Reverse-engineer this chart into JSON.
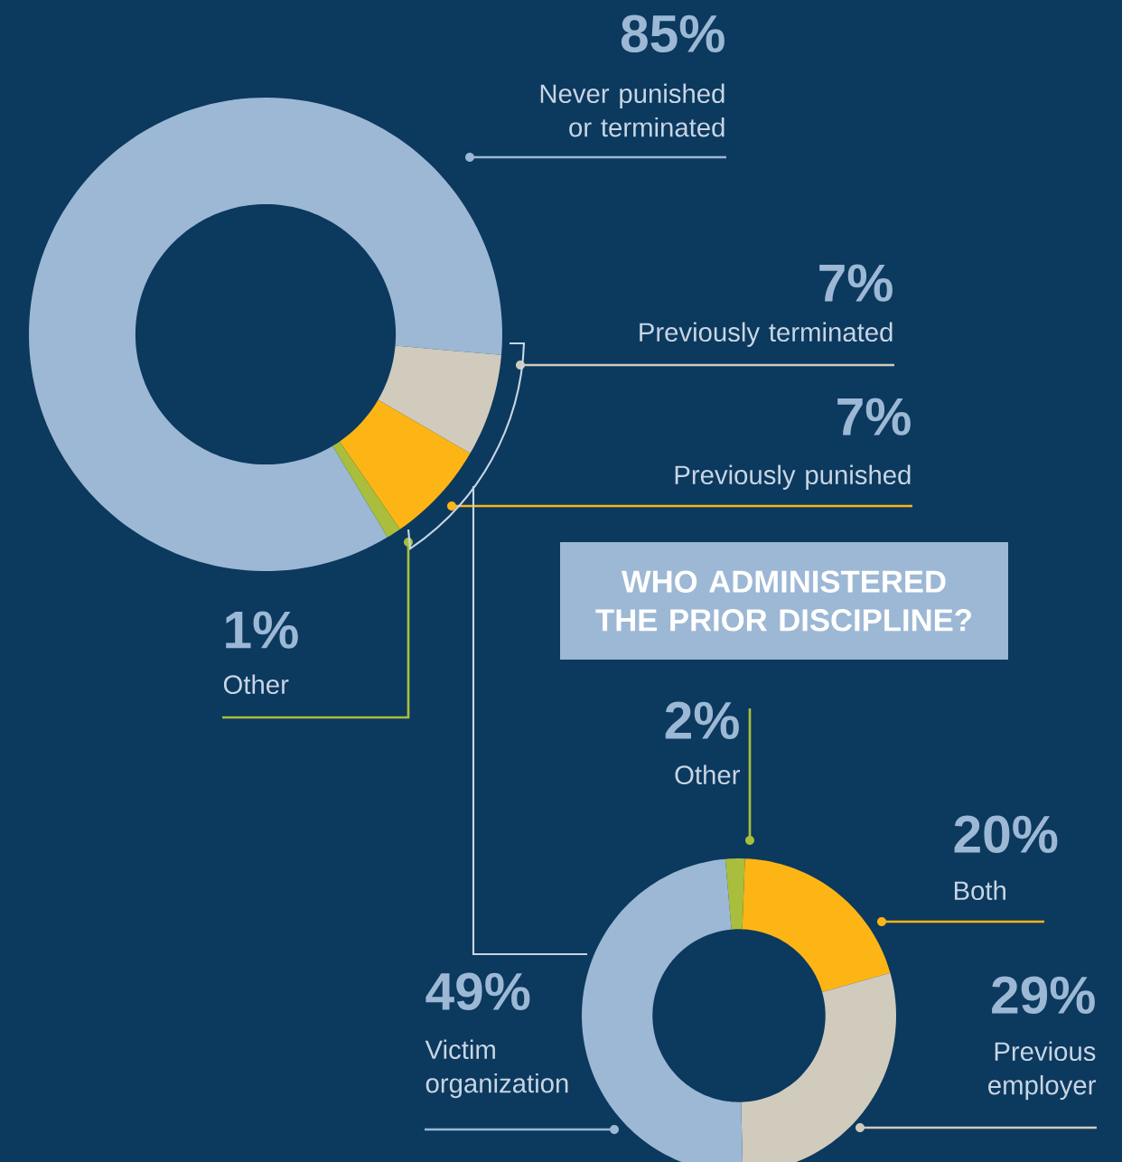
{
  "chart_data": [
    {
      "type": "donut",
      "categories": [
        "Never punished or terminated",
        "Previously terminated",
        "Previously punished",
        "Other"
      ],
      "values": [
        85,
        7,
        7,
        1
      ],
      "value_labels": [
        "85%",
        "7%",
        "7%",
        "1%"
      ],
      "colors": [
        "#9cb8d5",
        "#d0cbbd",
        "#fdb515",
        "#a8be3c"
      ]
    },
    {
      "type": "donut",
      "title": "WHO ADMINISTERED THE PRIOR DISCIPLINE?",
      "categories": [
        "Other",
        "Both",
        "Previous employer",
        "Victim organization"
      ],
      "values": [
        2,
        20,
        29,
        49
      ],
      "value_labels": [
        "2%",
        "20%",
        "29%",
        "49%"
      ],
      "colors": [
        "#a8be3c",
        "#fdb515",
        "#d0cbbd",
        "#9cb8d5"
      ]
    }
  ]
}
